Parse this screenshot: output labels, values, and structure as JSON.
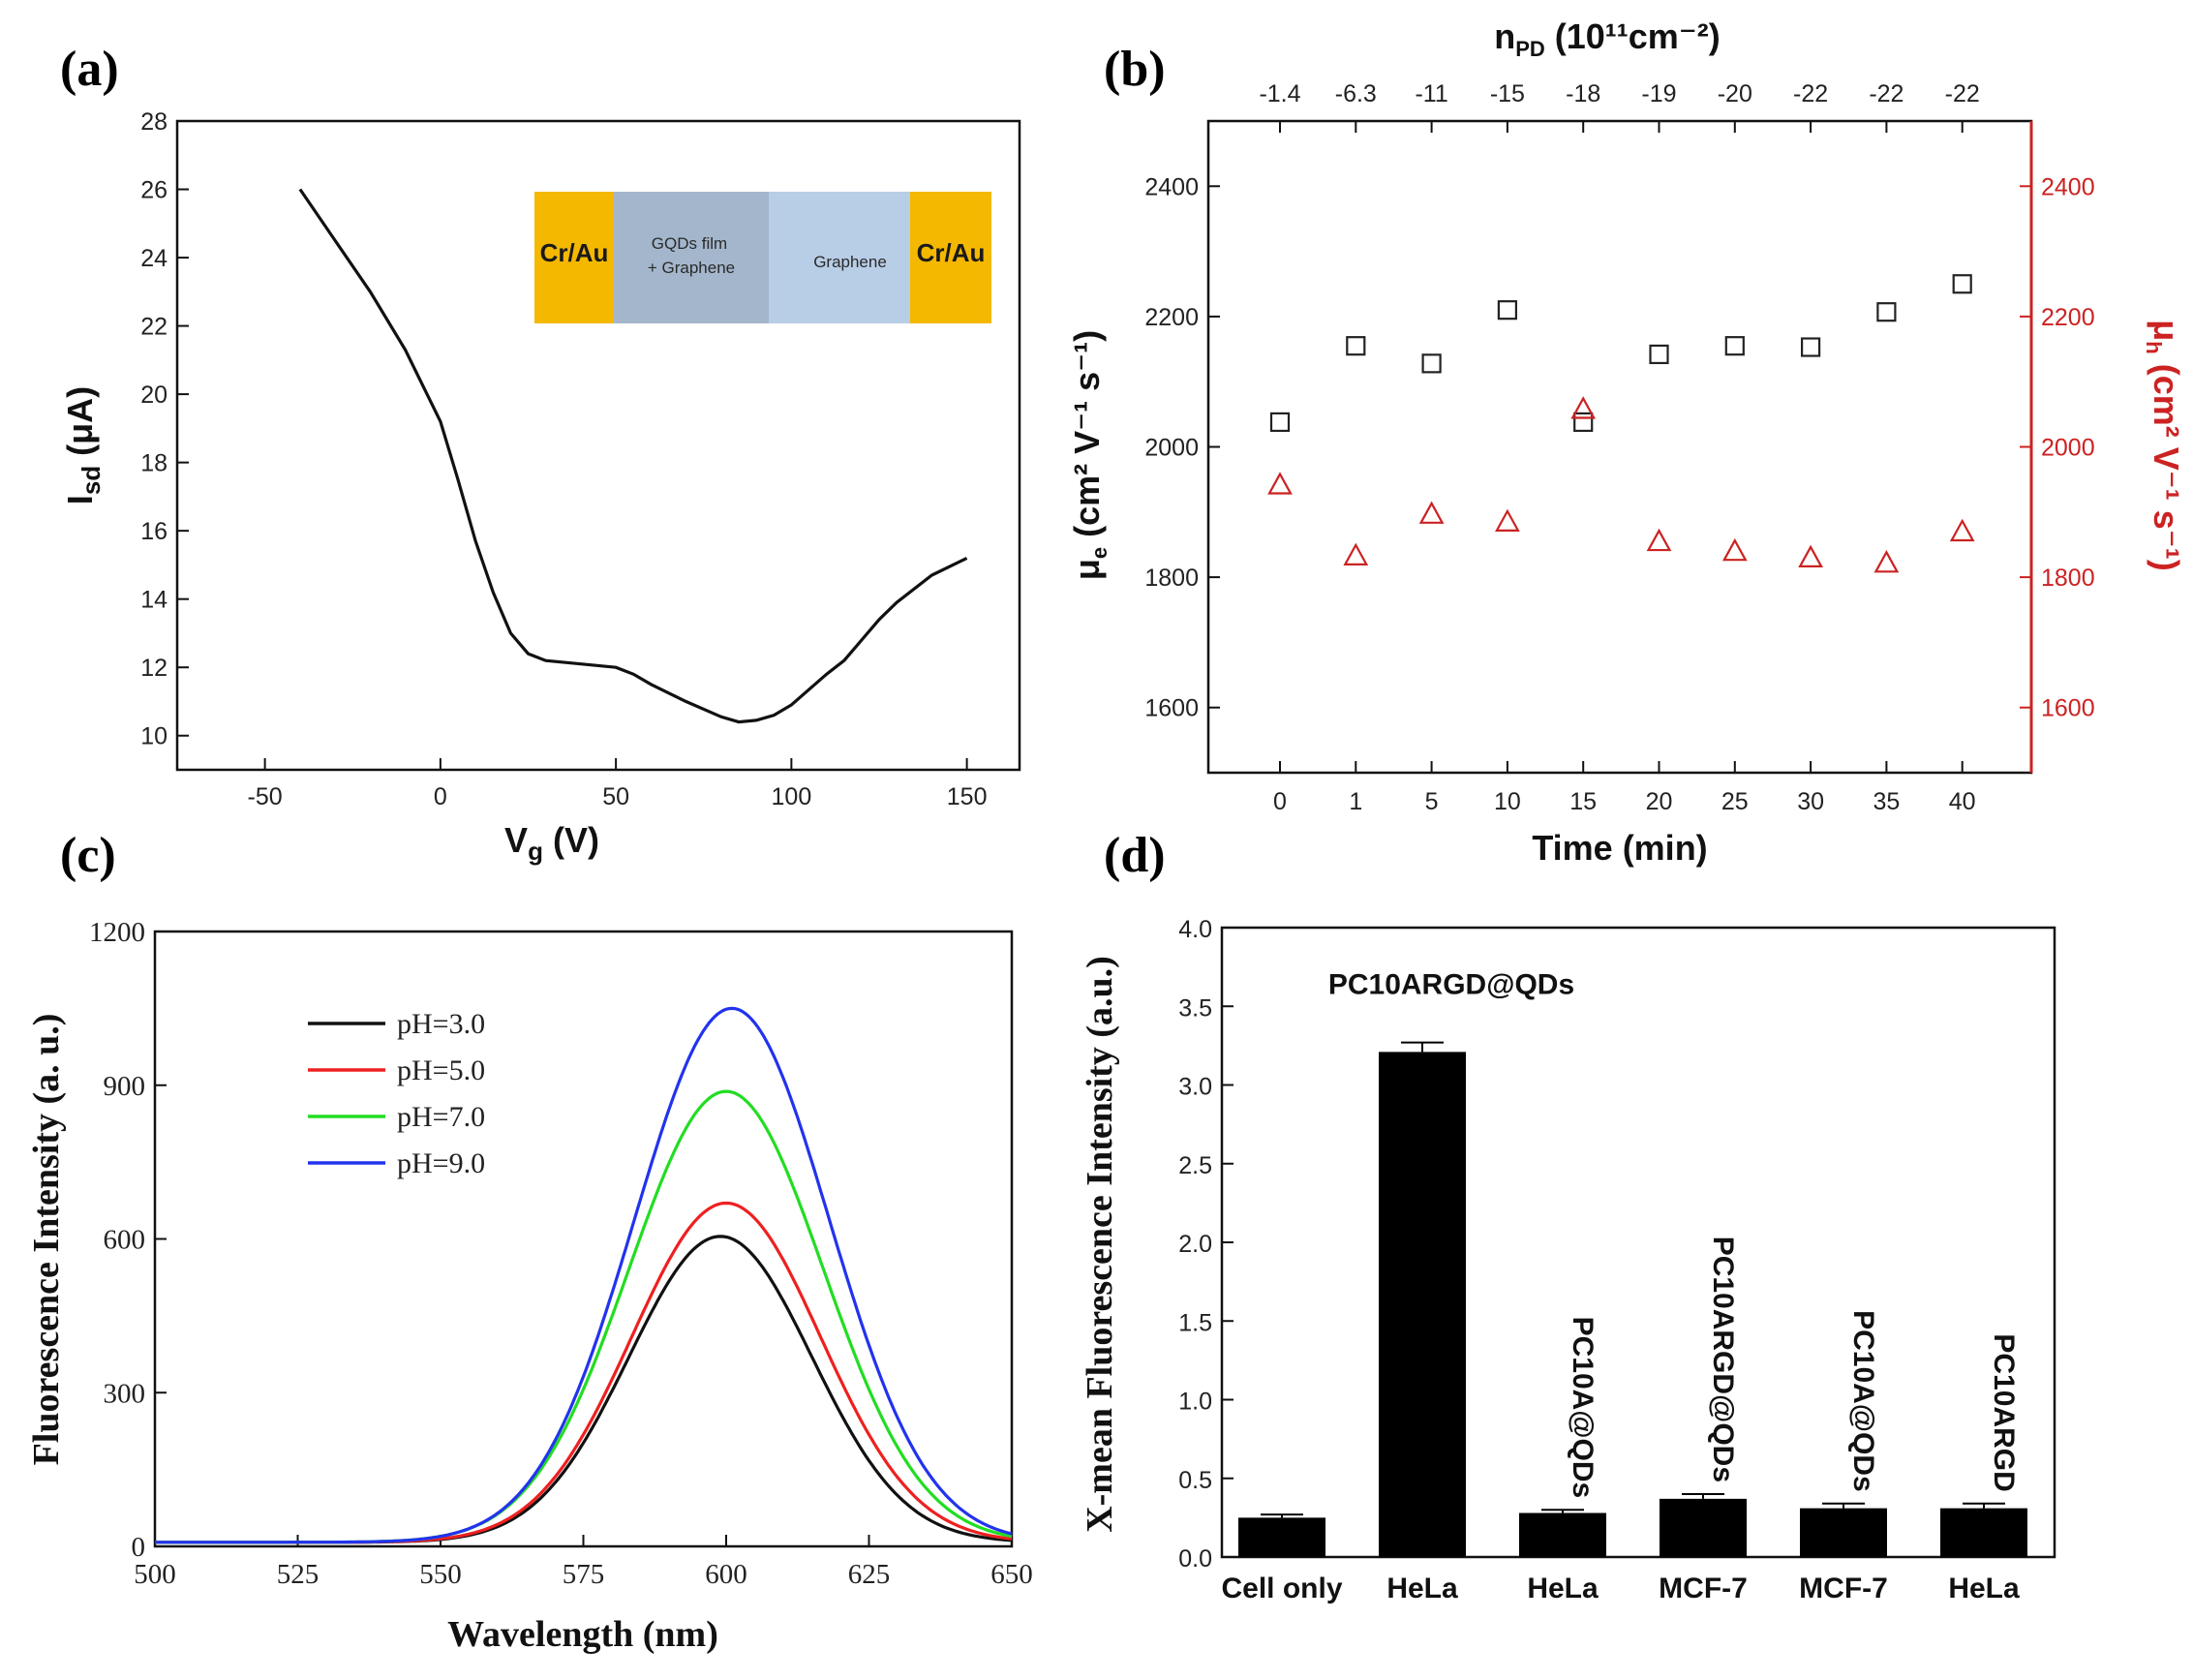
{
  "chart_data": [
    {
      "panel": "(a)",
      "type": "line",
      "xlabel": "V",
      "xlabel_sub": "g",
      "xlabel_unit": " (V)",
      "ylabel": "I",
      "ylabel_sub": "sd",
      "ylabel_unit": " (μA)",
      "xlim": [
        -75,
        165
      ],
      "ylim": [
        9,
        28
      ],
      "xticks": [
        -50,
        0,
        50,
        100,
        150
      ],
      "yticks": [
        10,
        12,
        14,
        16,
        18,
        20,
        22,
        24,
        26,
        28
      ],
      "series": [
        {
          "name": "Isd",
          "x": [
            -40,
            -30,
            -20,
            -10,
            0,
            5,
            10,
            15,
            20,
            25,
            30,
            40,
            50,
            55,
            60,
            70,
            80,
            85,
            90,
            95,
            100,
            110,
            115,
            120,
            125,
            130,
            140,
            150
          ],
          "y": [
            26.0,
            24.5,
            23.0,
            21.3,
            19.2,
            17.5,
            15.7,
            14.2,
            13.0,
            12.4,
            12.2,
            12.1,
            12.0,
            11.8,
            11.5,
            11.0,
            10.55,
            10.4,
            10.45,
            10.6,
            10.9,
            11.8,
            12.2,
            12.8,
            13.4,
            13.9,
            14.7,
            15.2
          ]
        }
      ],
      "inset": {
        "left_label": "Cr/Au",
        "middle_label_line1": "GQDs film",
        "middle_label_line2": "+ Graphene",
        "graphene_label": "Graphene",
        "right_label": "Cr/Au",
        "gold_color": "#f5b800",
        "film_color": "#a3b6cc",
        "graphene_color": "#b8cde6"
      }
    },
    {
      "panel": "(b)",
      "type": "scatter",
      "xlabel": "Time (min)",
      "ylabel_left": "μ",
      "ylabel_left_sub": "e",
      "ylabel_left_unit": " (cm² V⁻¹ s⁻¹)",
      "ylabel_right": "μ",
      "ylabel_right_sub": "h",
      "ylabel_right_unit": " (cm² V⁻¹ s⁻¹)",
      "top_axis_label": "n",
      "top_axis_sub": "PD",
      "top_axis_unit": " (10¹¹cm⁻²)",
      "categories": [
        "0",
        "1",
        "5",
        "10",
        "15",
        "20",
        "25",
        "30",
        "35",
        "40"
      ],
      "top_categories": [
        "-1.4",
        "-6.3",
        "-11",
        "-15",
        "-18",
        "-19",
        "-20",
        "-22",
        "-22",
        "-22"
      ],
      "ylim": [
        1500,
        2500
      ],
      "yticks": [
        1600,
        1800,
        2000,
        2200,
        2400
      ],
      "right_axis_color": "#cc2222",
      "series": [
        {
          "name": "μe",
          "marker": "square",
          "color": "#222222",
          "values": [
            2038,
            2155,
            2128,
            2210,
            2038,
            2142,
            2155,
            2153,
            2207,
            2250
          ]
        },
        {
          "name": "μh",
          "marker": "triangle",
          "color": "#cc2222",
          "values": [
            1942,
            1833,
            1897,
            1885,
            2058,
            1855,
            1840,
            1830,
            1822,
            1870
          ]
        }
      ]
    },
    {
      "panel": "(c)",
      "type": "line",
      "xlabel": "Wavelength (nm)",
      "ylabel": "Fluorescence Intensity (a. u.)",
      "xlim": [
        500,
        650
      ],
      "ylim": [
        0,
        1200
      ],
      "xticks": [
        500,
        525,
        550,
        575,
        600,
        625,
        650
      ],
      "yticks": [
        0,
        300,
        600,
        900,
        1200
      ],
      "series": [
        {
          "name": "pH=3.0",
          "color": "#111111",
          "peak_x": 599,
          "peak_y": 605,
          "width": 16
        },
        {
          "name": "pH=5.0",
          "color": "#ee2020",
          "peak_x": 600,
          "peak_y": 670,
          "width": 16.5
        },
        {
          "name": "pH=7.0",
          "color": "#22dd22",
          "peak_x": 600,
          "peak_y": 888,
          "width": 17
        },
        {
          "name": "pH=9.0",
          "color": "#2233ee",
          "peak_x": 601,
          "peak_y": 1050,
          "width": 17
        }
      ],
      "baseline": 8
    },
    {
      "panel": "(d)",
      "type": "bar",
      "ylabel": "X-mean Fluorescence Intensity (a.u.)",
      "ylim": [
        0,
        4.0
      ],
      "yticks": [
        "0.0",
        "0.5",
        "1.0",
        "1.5",
        "2.0",
        "2.5",
        "3.0",
        "3.5",
        "4.0"
      ],
      "categories": [
        "Cell only",
        "HeLa",
        "HeLa",
        "MCF-7",
        "MCF-7",
        "HeLa"
      ],
      "values": [
        0.25,
        3.21,
        0.28,
        0.37,
        0.31,
        0.31
      ],
      "errors": [
        0.02,
        0.06,
        0.02,
        0.03,
        0.03,
        0.03
      ],
      "bar_labels": [
        "",
        "PC10ARGD@QDs",
        "PC10A@QDs",
        "PC10ARGD@QDs",
        "PC10A@QDs",
        "PC10ARGD"
      ],
      "bar_label_rotated": [
        false,
        false,
        true,
        true,
        true,
        true
      ]
    }
  ]
}
